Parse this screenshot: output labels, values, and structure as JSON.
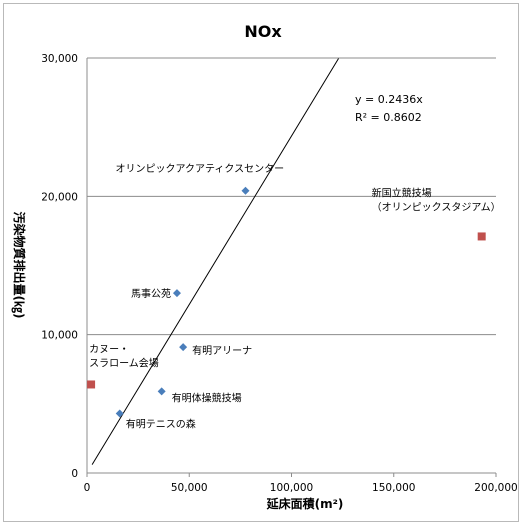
{
  "chart_data": {
    "type": "scatter",
    "title": "NOx",
    "xlabel": "延床面積(m²)",
    "ylabel": "汚染物質排出量(㎏)",
    "xlim": [
      0,
      200000
    ],
    "ylim": [
      0,
      30000
    ],
    "x_ticks": [
      "0",
      "50,000",
      "100,000",
      "150,000",
      "200,000"
    ],
    "y_ticks": [
      "0",
      "10,000",
      "20,000",
      "30,000"
    ],
    "grid": true,
    "series": [
      {
        "marker": "diamond",
        "color": "#4a7ebb",
        "points": [
          {
            "label": "オリンピックアクアティクスセンター",
            "x": 77500,
            "y": 20400
          },
          {
            "label": "馬事公苑",
            "x": 44000,
            "y": 13000
          },
          {
            "label": "有明アリーナ",
            "x": 47000,
            "y": 9100
          },
          {
            "label": "有明体操競技場",
            "x": 36500,
            "y": 5900
          },
          {
            "label": "有明テニスの森",
            "x": 16000,
            "y": 4300
          }
        ]
      },
      {
        "marker": "square",
        "color": "#c0504d",
        "points": [
          {
            "label": "新国立競技場\n（オリンピックスタジアム）",
            "x": 193000,
            "y": 17100
          },
          {
            "label": "カヌー・\nスラローム会場",
            "x": 2000,
            "y": 6400
          }
        ]
      }
    ],
    "trendline": {
      "slope": 0.2436,
      "equation": "y = 0.2436x",
      "r2": "R² = 0.8602",
      "x_range": [
        2500,
        123000
      ]
    }
  }
}
